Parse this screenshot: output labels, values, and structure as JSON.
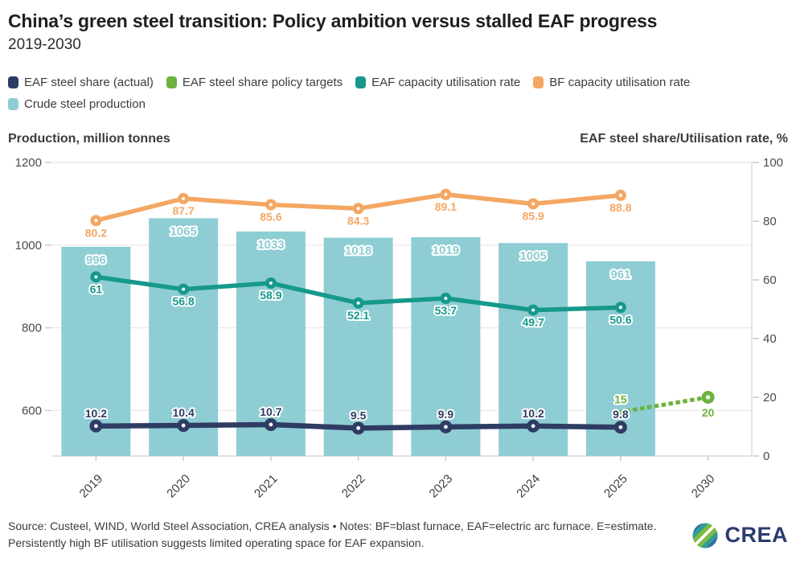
{
  "header": {
    "title": "China’s green steel transition: Policy ambition versus stalled EAF progress",
    "subtitle": "2019-2030"
  },
  "legend": {
    "items": [
      {
        "label": "EAF steel share (actual)",
        "color": "#2e3c63"
      },
      {
        "label": "EAF steel share policy targets",
        "color": "#6cb23e"
      },
      {
        "label": "EAF capacity utilisation rate",
        "color": "#16998a"
      },
      {
        "label": "BF capacity utilisation rate",
        "color": "#f4a763"
      },
      {
        "label": "Crude steel production",
        "color": "#8ecdd3"
      }
    ]
  },
  "chart_data": {
    "type": "bar",
    "title": "China’s green steel transition: Policy ambition versus stalled EAF progress",
    "subtitle": "2019-2030",
    "categories": [
      "2019",
      "2020",
      "2021",
      "2022",
      "2023",
      "2024",
      "2025",
      "2030"
    ],
    "ylabel_left": "Production, million tonnes",
    "ylabel_right": "EAF steel share/Utilisation rate, %",
    "left_axis": {
      "ticks": [
        1200,
        1000,
        800,
        600
      ],
      "min": 490,
      "max": 1200,
      "grid": true
    },
    "right_axis": {
      "ticks": [
        100,
        80,
        60,
        40,
        20,
        0
      ],
      "min": 0,
      "max": 100,
      "grid": false
    },
    "series": [
      {
        "name": "Crude steel production",
        "type": "bar",
        "axis": "left",
        "color": "#8ecdd3",
        "values": [
          996,
          1065,
          1033,
          1018,
          1019,
          1005,
          961,
          null
        ]
      },
      {
        "name": "BF capacity utilisation rate",
        "type": "line",
        "axis": "right",
        "color": "#f4a763",
        "label_position": "below",
        "values": [
          80.2,
          87.7,
          85.6,
          84.3,
          89.1,
          85.9,
          88.8,
          null
        ]
      },
      {
        "name": "EAF capacity utilisation rate",
        "type": "line",
        "axis": "right",
        "color": "#16998a",
        "label_position": "below",
        "values": [
          61,
          56.8,
          58.9,
          52.1,
          53.7,
          49.7,
          50.6,
          null
        ]
      },
      {
        "name": "EAF steel share (actual)",
        "type": "line",
        "axis": "right",
        "color": "#2e3c63",
        "label_position": "above",
        "values": [
          10.2,
          10.4,
          10.7,
          9.5,
          9.9,
          10.2,
          9.8,
          null
        ]
      },
      {
        "name": "EAF steel share policy targets",
        "type": "dotted-line",
        "axis": "right",
        "color": "#6cb23e",
        "points": [
          {
            "category": "2025",
            "value": 15,
            "label_position": "above"
          },
          {
            "category": "2030",
            "value": 20,
            "label_position": "below"
          }
        ]
      }
    ],
    "legend_position": "top"
  },
  "footer": {
    "source_note": "Source: Custeel, WIND, World Steel Association, CREA analysis • Notes: BF=blast furnace, EAF=electric arc furnace. E=estimate. Persistently high BF utilisation suggests limited operating space for EAF expansion.",
    "logo_text": "CREA"
  }
}
